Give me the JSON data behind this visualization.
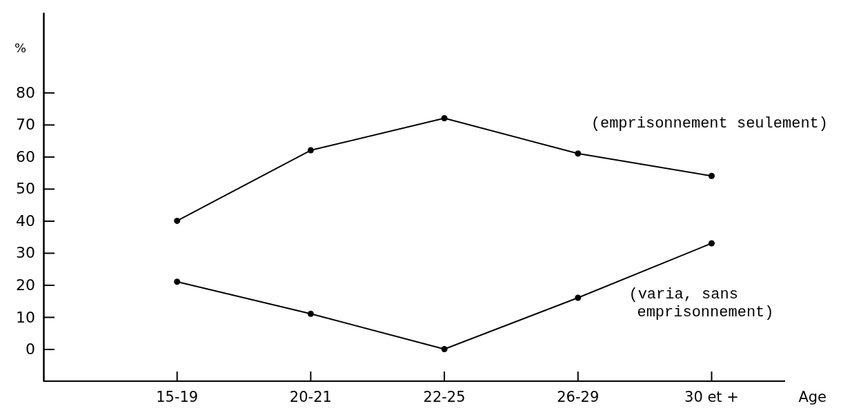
{
  "chart_data": {
    "type": "line",
    "xlabel": "Age",
    "ylabel": "%",
    "categories": [
      "15-19",
      "20-21",
      "22-25",
      "26-29",
      "30 et +"
    ],
    "series": [
      {
        "name": "(emprisonnement seulement)",
        "color": "#000000",
        "values": [
          40,
          62,
          72,
          61,
          54
        ]
      },
      {
        "name": "(varia, sans emprisonnement)",
        "color": "#000000",
        "values": [
          21,
          11,
          0,
          16,
          33
        ]
      }
    ],
    "ylim": [
      -10,
      105
    ],
    "yticks": [
      0,
      10,
      20,
      30,
      40,
      50,
      60,
      70,
      80
    ],
    "marker": "circle",
    "line_style": "solid",
    "grid": false
  }
}
